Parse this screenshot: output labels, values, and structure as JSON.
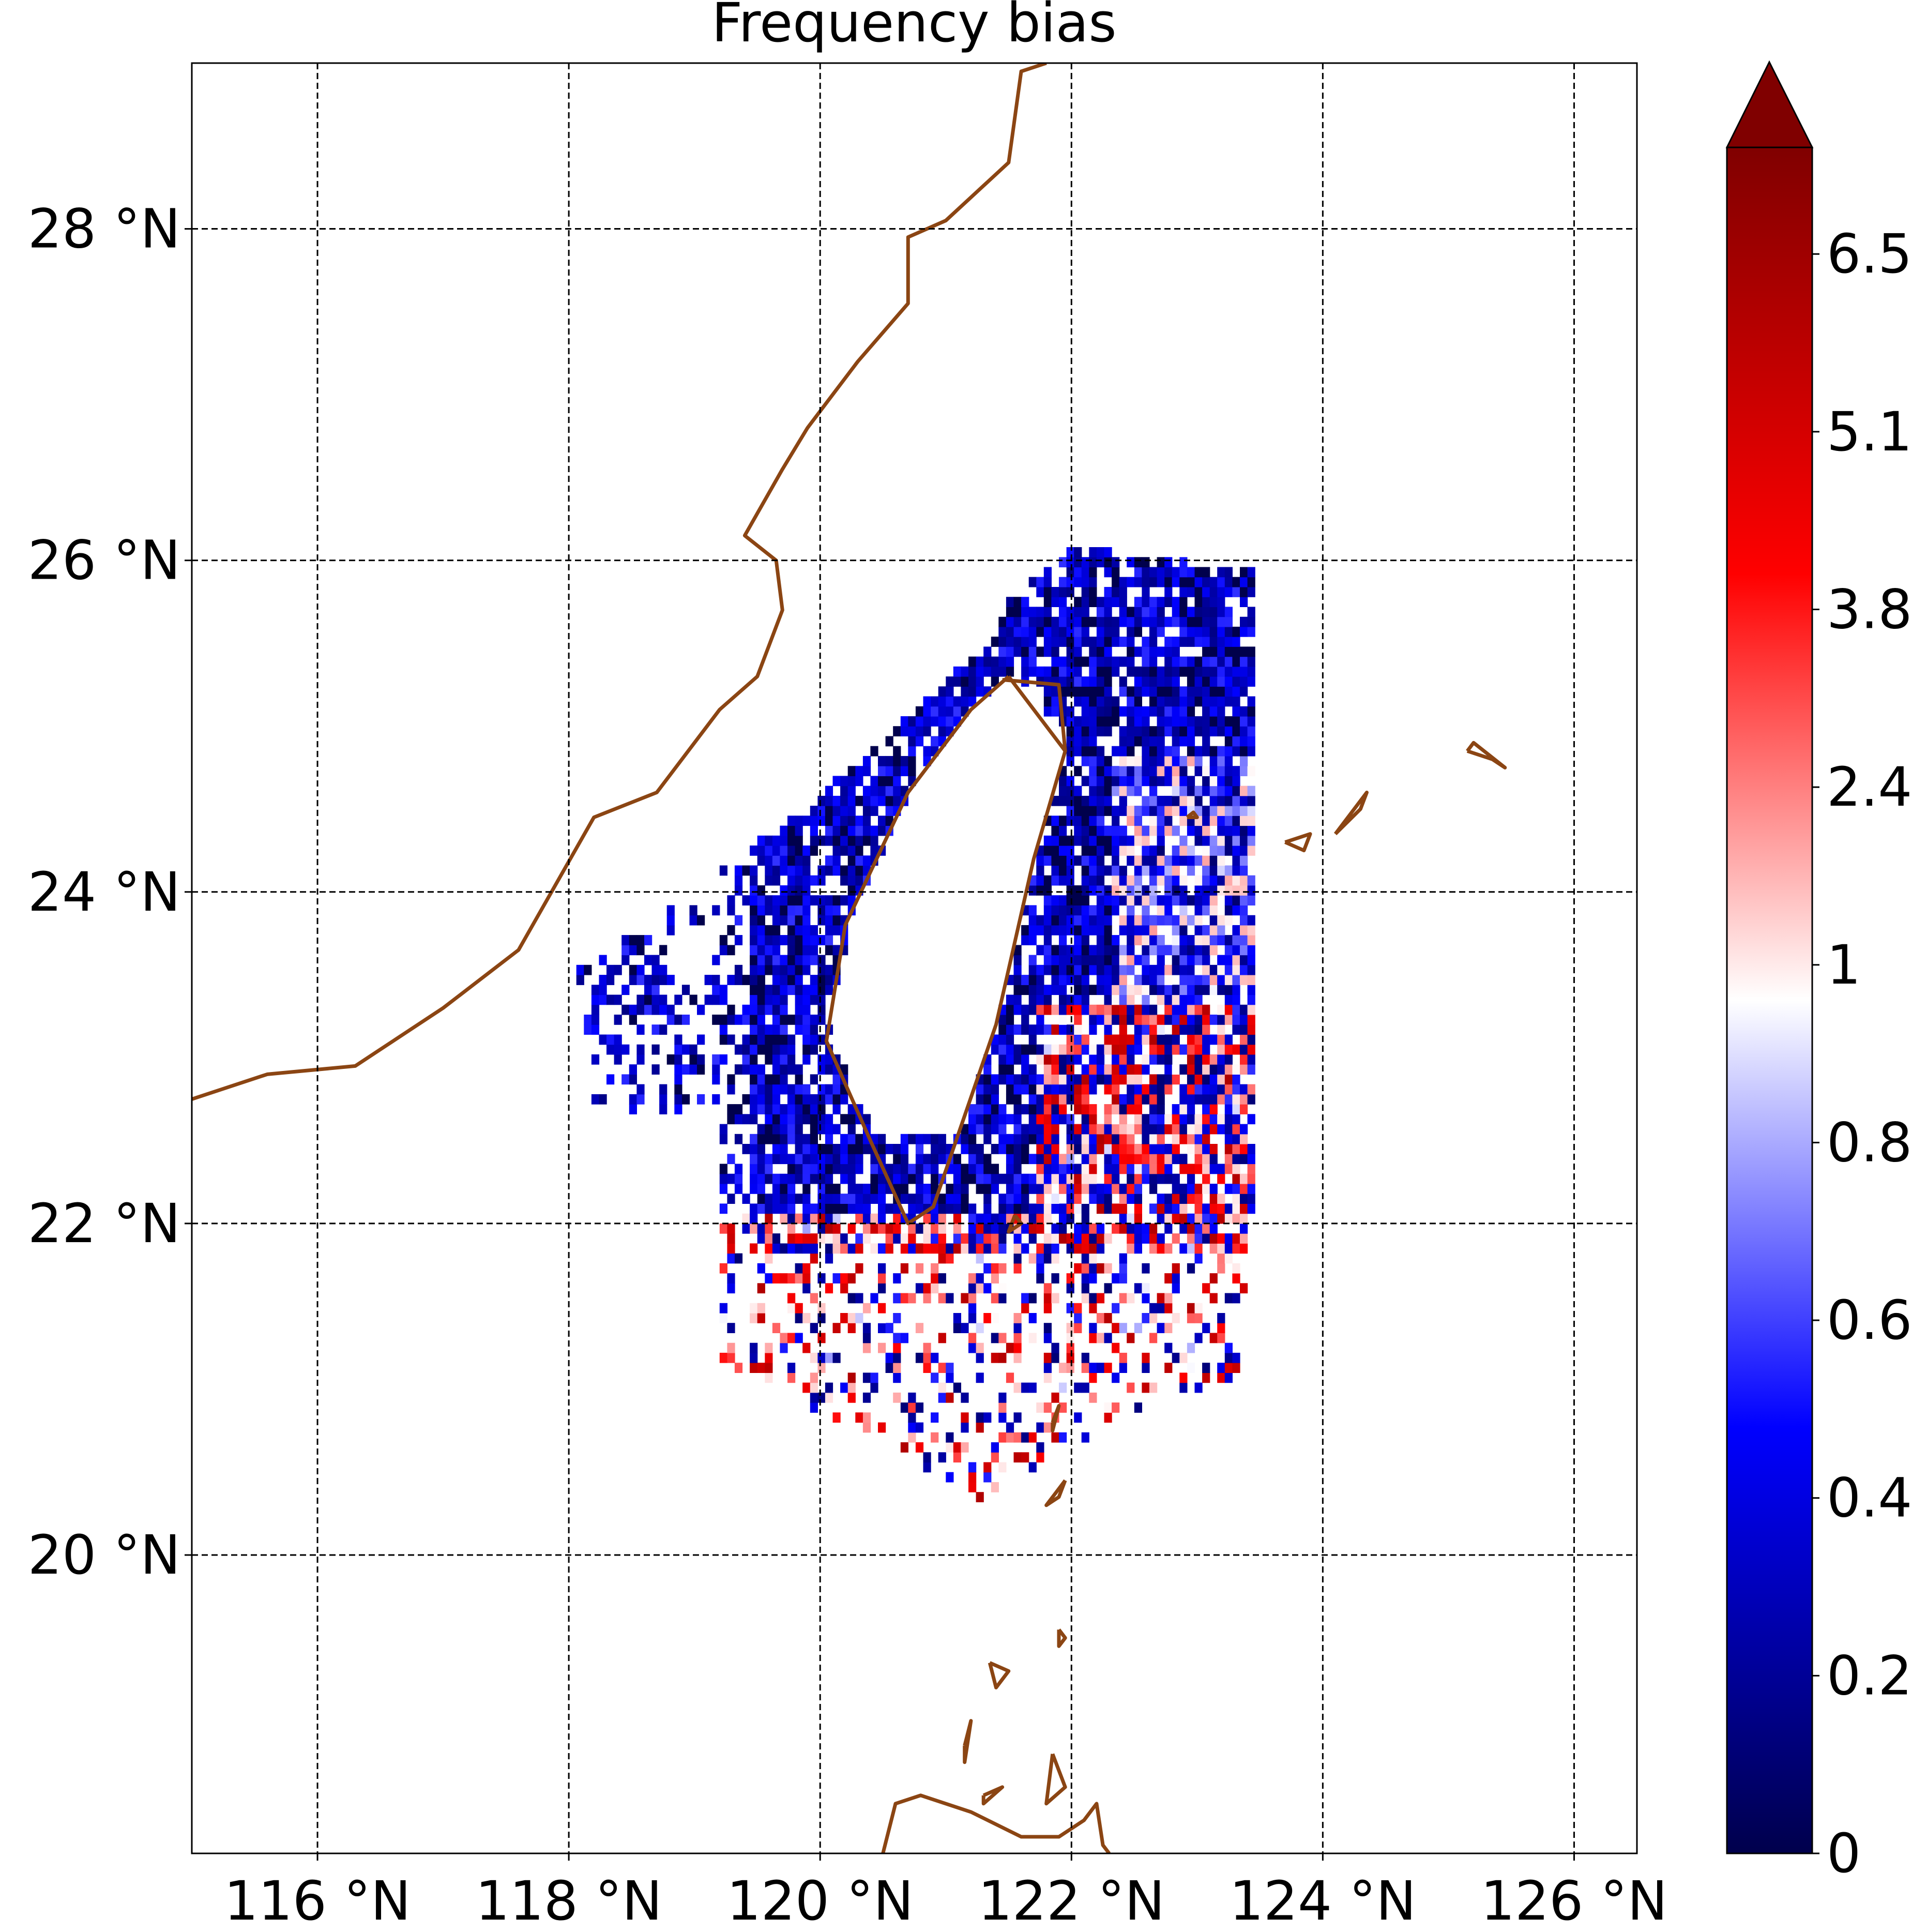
{
  "title": "Frequency bias",
  "map": {
    "lon_range": [
      115,
      126.5
    ],
    "lat_range": [
      18.2,
      29
    ],
    "x_ticks": [
      {
        "value": 116,
        "label": "116 °N"
      },
      {
        "value": 118,
        "label": "118 °N"
      },
      {
        "value": 120,
        "label": "120 °N"
      },
      {
        "value": 122,
        "label": "122 °N"
      },
      {
        "value": 124,
        "label": "124 °N"
      },
      {
        "value": 126,
        "label": "126 °N"
      }
    ],
    "y_ticks": [
      {
        "value": 28,
        "label": "28 °N"
      },
      {
        "value": 26,
        "label": "26 °N"
      },
      {
        "value": 24,
        "label": "24 °N"
      },
      {
        "value": 22,
        "label": "22 °N"
      },
      {
        "value": 20,
        "label": "20 °N"
      }
    ],
    "gridlines": "dashed",
    "coastline_color": "#8B4513"
  },
  "colorbar": {
    "colormap": "seismic",
    "extend": "max",
    "ticks": [
      "0",
      "0.2",
      "0.4",
      "0.6",
      "0.8",
      "1",
      "2.4",
      "3.8",
      "5.1",
      "6.5"
    ]
  },
  "chart_data": {
    "type": "heatmap",
    "title": "Frequency bias",
    "xlabel": "",
    "ylabel": "",
    "x_range": [
      115,
      126.5
    ],
    "y_range": [
      18.2,
      29
    ],
    "value_range": [
      0,
      7.5
    ],
    "grid": true
  }
}
